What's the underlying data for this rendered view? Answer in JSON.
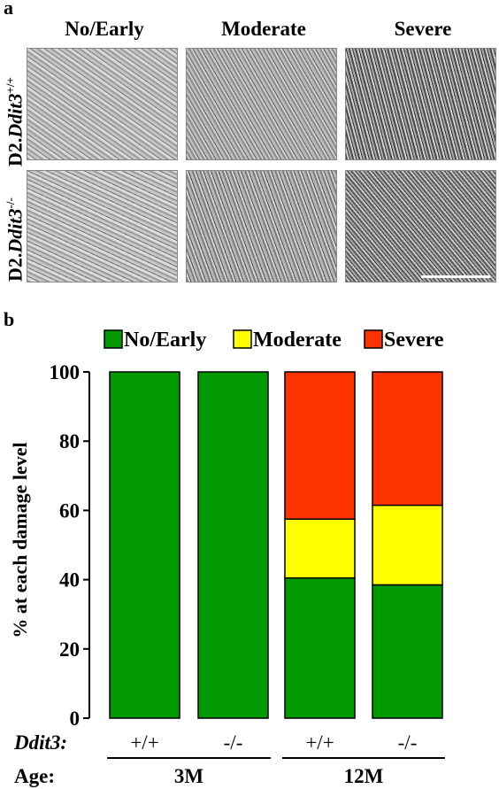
{
  "panel_a": {
    "letter": "a",
    "columns": [
      "No/Early",
      "Moderate",
      "Severe"
    ],
    "rows": [
      {
        "prefix": "D2.",
        "gene": "Ddit3",
        "genotype": "+/+"
      },
      {
        "prefix": "D2.",
        "gene": "Ddit3",
        "genotype": "-/-"
      }
    ]
  },
  "panel_b": {
    "letter": "b",
    "row_labels": {
      "genotype_label": "Ddit3:",
      "age_label": "Age:"
    },
    "genotypes": [
      "+/+",
      "-/-",
      "+/+",
      "-/-"
    ],
    "ages": [
      {
        "label": "3M",
        "span": [
          0,
          1
        ]
      },
      {
        "label": "12M",
        "span": [
          2,
          3
        ]
      }
    ]
  },
  "chart_data": {
    "type": "bar",
    "stacked": true,
    "categories": [
      "+/+",
      "-/-",
      "+/+",
      "-/-"
    ],
    "series": [
      {
        "name": "No/Early",
        "color": "#009900",
        "values": [
          100,
          100,
          40.5,
          38.5
        ]
      },
      {
        "name": "Moderate",
        "color": "#ffff00",
        "values": [
          0,
          0,
          17,
          23
        ]
      },
      {
        "name": "Severe",
        "color": "#ff3300",
        "values": [
          0,
          0,
          42.5,
          38.5
        ]
      }
    ],
    "ylabel": "% at each damage level",
    "ylim": [
      0,
      100
    ],
    "yticks": [
      "0",
      "20",
      "40",
      "60",
      "80",
      "100"
    ],
    "legend_position": "top",
    "grid": false
  }
}
